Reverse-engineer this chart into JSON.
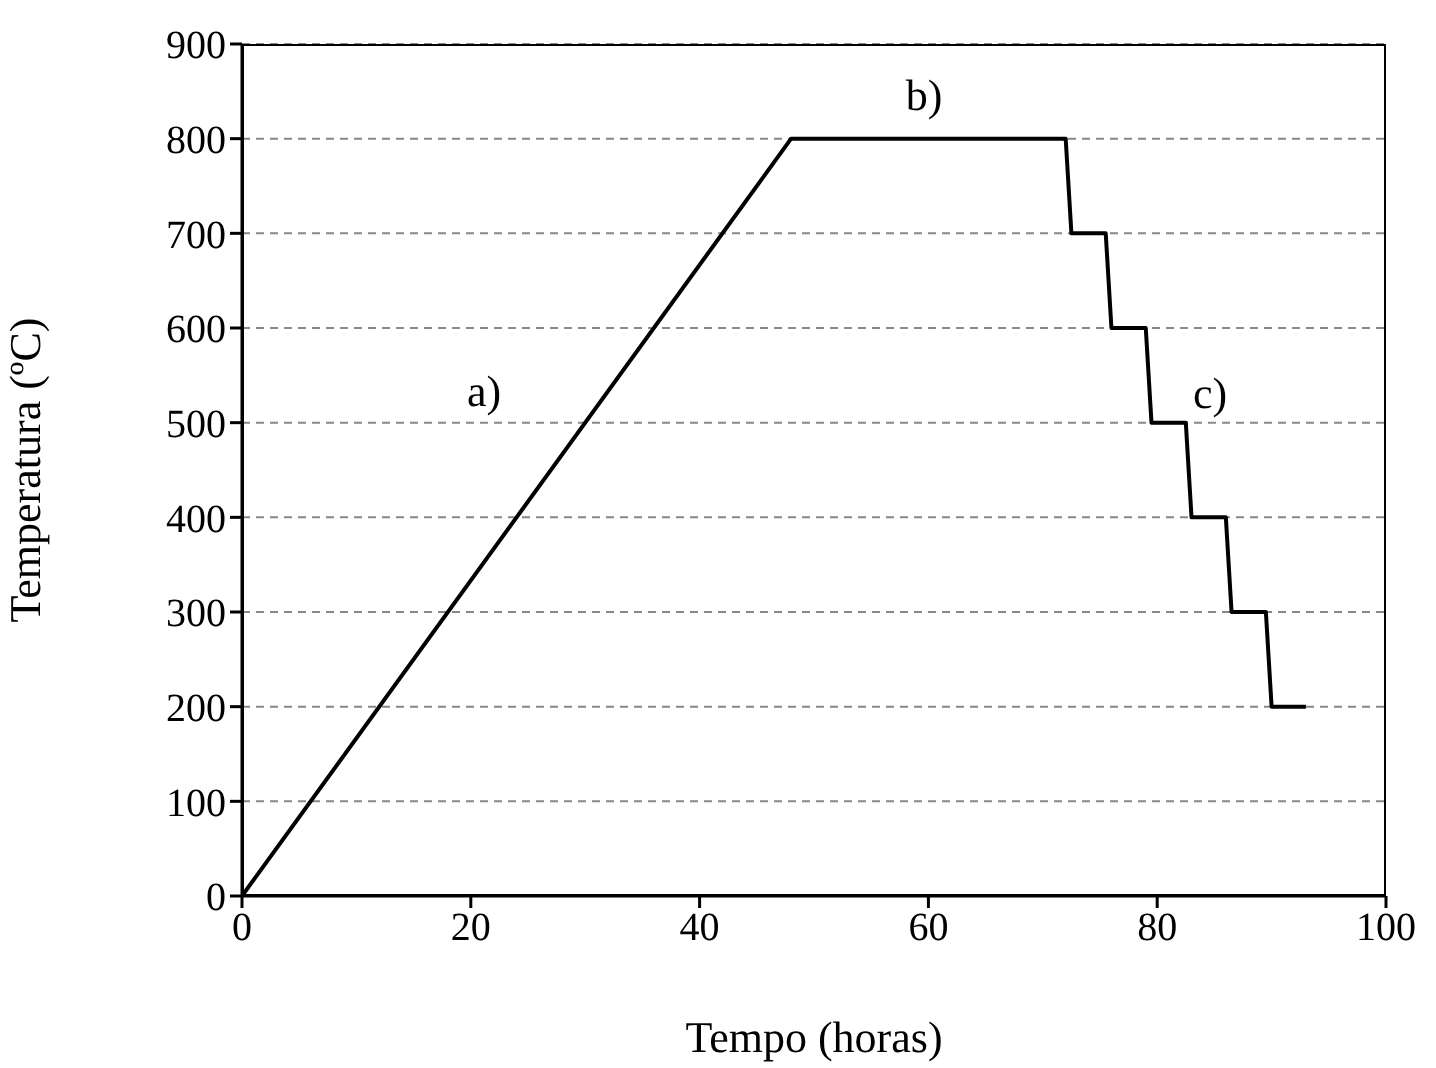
{
  "chart_data": {
    "type": "line",
    "xlabel": "Tempo (horas)",
    "ylabel": "Temperatura (ºC)",
    "x": [
      0,
      48,
      72,
      72.5,
      75.5,
      76,
      79,
      79.5,
      82.5,
      83,
      86,
      86.5,
      89.5,
      90,
      93
    ],
    "series": [
      {
        "color": "#000000",
        "values": [
          0,
          800,
          800,
          700,
          700,
          600,
          600,
          500,
          500,
          400,
          400,
          300,
          300,
          200,
          200
        ]
      }
    ],
    "xlim": [
      0,
      100
    ],
    "xticks": [
      0,
      20,
      40,
      60,
      80,
      100
    ],
    "ylim": [
      0,
      900
    ],
    "yticks": [
      0,
      100,
      200,
      300,
      400,
      500,
      600,
      700,
      800,
      900
    ],
    "grid": "y",
    "marker": "none",
    "line_style": "solid",
    "annotations": [
      "a)",
      "b)",
      "c)"
    ]
  }
}
